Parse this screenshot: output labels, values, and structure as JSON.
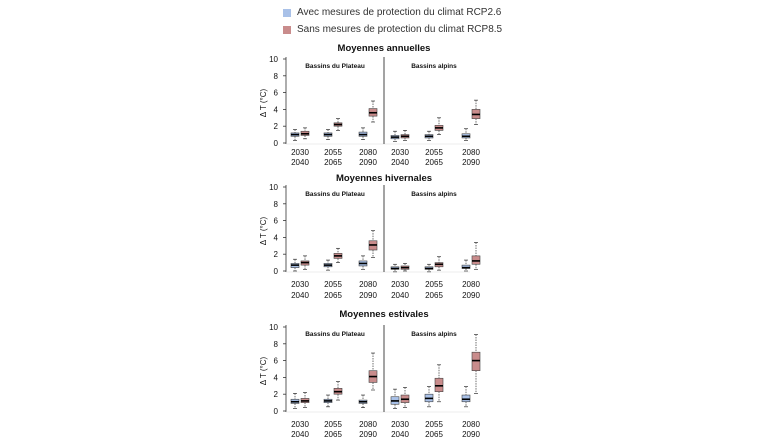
{
  "legend": {
    "items": [
      {
        "label": "Avec mesures de protection du climat RCP2.6",
        "color": "#a9c1e8"
      },
      {
        "label": "Sans mesures de protection du climat RCP8.5",
        "color": "#c98c8c"
      }
    ]
  },
  "colors": {
    "rcp26_fill": "#a9c1e8",
    "rcp85_fill": "#c98c8c",
    "median": "#000000",
    "whisker": "#333333",
    "outlier_rcp26": "#222222",
    "outlier_rcp85": "#222222"
  },
  "chart_data": [
    {
      "type": "box",
      "title": "Moyennes annuelles",
      "ylabel": "Δ T (°C)",
      "ylim": [
        0,
        10
      ],
      "yticks": [
        0,
        2,
        4,
        6,
        8,
        10
      ],
      "grid": false,
      "categories": [
        [
          "2030",
          "2040"
        ],
        [
          "2055",
          "2065"
        ],
        [
          "2080",
          "2090"
        ]
      ],
      "series_names": [
        "RCP2.6",
        "RCP8.5"
      ],
      "panels": [
        {
          "title": "Bassins du Plateau",
          "boxes": [
            [
              {
                "min": 0.3,
                "q1": 0.8,
                "median": 1.0,
                "q3": 1.2,
                "max": 1.6
              },
              {
                "min": 0.5,
                "q1": 0.9,
                "median": 1.1,
                "q3": 1.4,
                "max": 1.8
              }
            ],
            [
              {
                "min": 0.4,
                "q1": 0.8,
                "median": 1.0,
                "q3": 1.2,
                "max": 1.6
              },
              {
                "min": 1.5,
                "q1": 2.0,
                "median": 2.2,
                "q3": 2.4,
                "max": 2.9
              }
            ],
            [
              {
                "min": 0.4,
                "q1": 0.8,
                "median": 1.0,
                "q3": 1.3,
                "max": 1.8
              },
              {
                "min": 2.5,
                "q1": 3.2,
                "median": 3.6,
                "q3": 4.1,
                "max": 5.0
              }
            ]
          ]
        },
        {
          "title": "Bassins alpins",
          "boxes": [
            [
              {
                "min": 0.2,
                "q1": 0.5,
                "median": 0.7,
                "q3": 0.9,
                "max": 1.4
              },
              {
                "min": 0.3,
                "q1": 0.6,
                "median": 0.8,
                "q3": 1.0,
                "max": 1.5
              }
            ],
            [
              {
                "min": 0.3,
                "q1": 0.6,
                "median": 0.8,
                "q3": 1.0,
                "max": 1.4
              },
              {
                "min": 1.0,
                "q1": 1.5,
                "median": 1.8,
                "q3": 2.1,
                "max": 3.0
              }
            ],
            [
              {
                "min": 0.3,
                "q1": 0.6,
                "median": 0.8,
                "q3": 1.1,
                "max": 1.7
              },
              {
                "min": 2.2,
                "q1": 2.9,
                "median": 3.4,
                "q3": 4.0,
                "max": 5.1
              }
            ]
          ]
        }
      ]
    },
    {
      "type": "box",
      "title": "Moyennes hivernales",
      "ylabel": "Δ T (°C)",
      "ylim": [
        0,
        10
      ],
      "yticks": [
        0,
        2,
        4,
        6,
        8,
        10
      ],
      "grid": false,
      "categories": [
        [
          "2030",
          "2040"
        ],
        [
          "2055",
          "2065"
        ],
        [
          "2080",
          "2090"
        ]
      ],
      "series_names": [
        "RCP2.6",
        "RCP8.5"
      ],
      "panels": [
        {
          "title": "Bassins du Plateau",
          "boxes": [
            [
              {
                "min": 0.0,
                "q1": 0.4,
                "median": 0.7,
                "q3": 0.9,
                "max": 1.4
              },
              {
                "min": 0.2,
                "q1": 0.7,
                "median": 1.0,
                "q3": 1.2,
                "max": 1.8
              }
            ],
            [
              {
                "min": 0.1,
                "q1": 0.5,
                "median": 0.7,
                "q3": 0.9,
                "max": 1.3
              },
              {
                "min": 1.0,
                "q1": 1.5,
                "median": 1.8,
                "q3": 2.1,
                "max": 2.7
              }
            ],
            [
              {
                "min": 0.2,
                "q1": 0.6,
                "median": 0.9,
                "q3": 1.2,
                "max": 1.8
              },
              {
                "min": 1.6,
                "q1": 2.5,
                "median": 3.1,
                "q3": 3.6,
                "max": 4.8
              }
            ]
          ]
        },
        {
          "title": "Bassins alpins",
          "boxes": [
            [
              {
                "min": -0.1,
                "q1": 0.2,
                "median": 0.3,
                "q3": 0.5,
                "max": 0.8
              },
              {
                "min": 0.0,
                "q1": 0.2,
                "median": 0.4,
                "q3": 0.6,
                "max": 0.9
              }
            ],
            [
              {
                "min": -0.1,
                "q1": 0.2,
                "median": 0.3,
                "q3": 0.5,
                "max": 0.8
              },
              {
                "min": 0.1,
                "q1": 0.5,
                "median": 0.8,
                "q3": 1.0,
                "max": 1.7
              }
            ],
            [
              {
                "min": 0.0,
                "q1": 0.3,
                "median": 0.4,
                "q3": 0.7,
                "max": 1.3
              },
              {
                "min": 0.2,
                "q1": 0.8,
                "median": 1.2,
                "q3": 1.8,
                "max": 3.4
              }
            ]
          ]
        }
      ]
    },
    {
      "type": "box",
      "title": "Moyennes estivales",
      "ylabel": "Δ T (°C)",
      "ylim": [
        0,
        10
      ],
      "yticks": [
        0,
        2,
        4,
        6,
        8,
        10
      ],
      "grid": false,
      "categories": [
        [
          "2030",
          "2040"
        ],
        [
          "2055",
          "2065"
        ],
        [
          "2080",
          "2090"
        ]
      ],
      "series_names": [
        "RCP2.6",
        "RCP8.5"
      ],
      "panels": [
        {
          "title": "Bassins du Plateau",
          "boxes": [
            [
              {
                "min": 0.3,
                "q1": 0.9,
                "median": 1.1,
                "q3": 1.4,
                "max": 2.1
              },
              {
                "min": 0.4,
                "q1": 1.0,
                "median": 1.2,
                "q3": 1.5,
                "max": 2.2
              }
            ],
            [
              {
                "min": 0.5,
                "q1": 1.0,
                "median": 1.2,
                "q3": 1.4,
                "max": 1.9
              },
              {
                "min": 1.3,
                "q1": 2.0,
                "median": 2.3,
                "q3": 2.7,
                "max": 3.5
              }
            ],
            [
              {
                "min": 0.4,
                "q1": 0.9,
                "median": 1.1,
                "q3": 1.3,
                "max": 1.9
              },
              {
                "min": 2.5,
                "q1": 3.4,
                "median": 4.1,
                "q3": 4.8,
                "max": 6.9
              }
            ]
          ]
        },
        {
          "title": "Bassins alpins",
          "boxes": [
            [
              {
                "min": 0.3,
                "q1": 0.8,
                "median": 1.2,
                "q3": 1.7,
                "max": 2.6
              },
              {
                "min": 0.4,
                "q1": 1.0,
                "median": 1.4,
                "q3": 1.9,
                "max": 2.8
              }
            ],
            [
              {
                "min": 0.5,
                "q1": 1.1,
                "median": 1.5,
                "q3": 2.0,
                "max": 2.9
              },
              {
                "min": 1.1,
                "q1": 2.3,
                "median": 3.0,
                "q3": 3.9,
                "max": 5.5
              }
            ],
            [
              {
                "min": 0.5,
                "q1": 1.1,
                "median": 1.4,
                "q3": 1.9,
                "max": 2.9
              },
              {
                "min": 2.1,
                "q1": 4.8,
                "median": 6.0,
                "q3": 7.0,
                "max": 9.1
              }
            ]
          ]
        }
      ]
    }
  ]
}
